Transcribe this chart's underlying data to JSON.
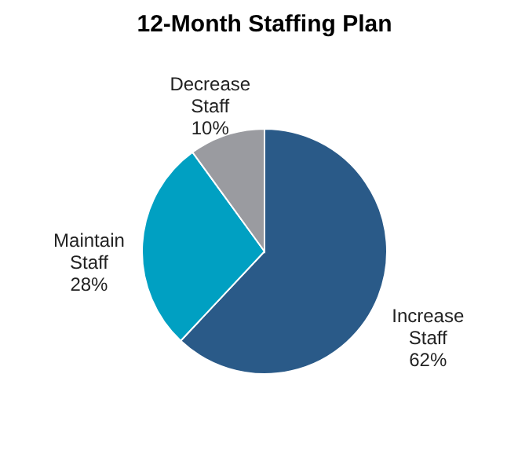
{
  "chart_data": {
    "type": "pie",
    "title": "12-Month Staffing Plan",
    "categories": [
      "Increase Staff",
      "Maintain Staff",
      "Decrease Staff"
    ],
    "values": [
      62,
      28,
      10
    ],
    "value_labels": [
      "62%",
      "28%",
      "10%"
    ],
    "colors": [
      "#2a5a88",
      "#00a0c2",
      "#9a9ba0"
    ]
  }
}
